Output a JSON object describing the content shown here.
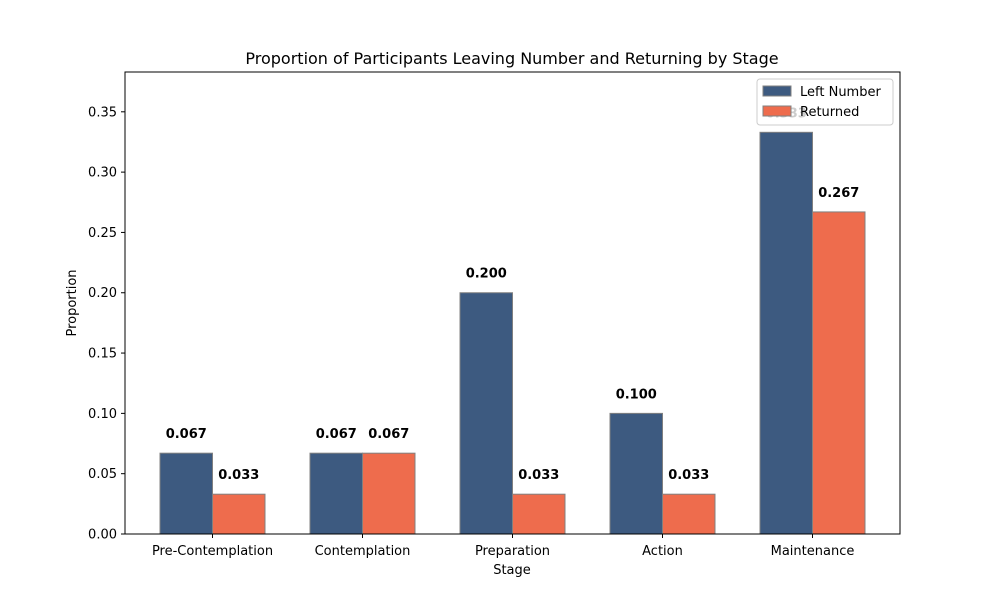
{
  "chart_data": {
    "type": "bar",
    "title": "Proportion of Participants Leaving Number and Returning by Stage",
    "xlabel": "Stage",
    "ylabel": "Proportion",
    "categories": [
      "Pre-Contemplation",
      "Contemplation",
      "Preparation",
      "Action",
      "Maintenance"
    ],
    "series": [
      {
        "name": "Left Number",
        "values": [
          0.067,
          0.067,
          0.2,
          0.1,
          0.333
        ],
        "labels": [
          "0.067",
          "0.067",
          "0.200",
          "0.100",
          "0.333"
        ],
        "color": "#3d5a80"
      },
      {
        "name": "Returned",
        "values": [
          0.033,
          0.067,
          0.033,
          0.033,
          0.267
        ],
        "labels": [
          "0.033",
          "0.067",
          "0.033",
          "0.033",
          "0.267"
        ],
        "color": "#ee6c4d"
      }
    ],
    "ylim": [
      0,
      0.383
    ],
    "yticks": [
      0.0,
      0.05,
      0.1,
      0.15,
      0.2,
      0.25,
      0.3,
      0.35
    ],
    "ytick_labels": [
      "0.00",
      "0.05",
      "0.10",
      "0.15",
      "0.20",
      "0.25",
      "0.30",
      "0.35"
    ],
    "grid": false,
    "legend_position": "top-right",
    "bar_edge_color": "#808080"
  }
}
